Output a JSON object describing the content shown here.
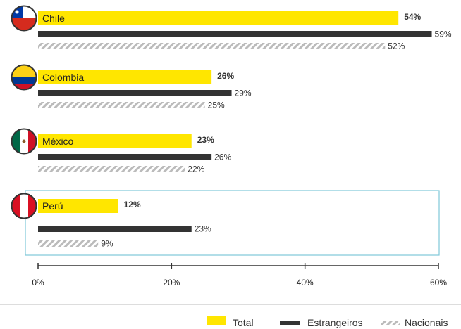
{
  "chart_data": {
    "type": "bar",
    "orientation": "horizontal",
    "categories": [
      "Chile",
      "Colombia",
      "México",
      "Perú"
    ],
    "series": [
      {
        "name": "Total",
        "values": [
          54,
          26,
          23,
          12
        ],
        "color": "#FFE600",
        "pattern": "solid"
      },
      {
        "name": "Estrangeiros",
        "values": [
          59,
          29,
          26,
          23
        ],
        "color": "#333333",
        "pattern": "solid"
      },
      {
        "name": "Nacionais",
        "values": [
          52,
          25,
          22,
          9
        ],
        "color": "#BBBBBB",
        "pattern": "hatched"
      }
    ],
    "value_suffix": "%",
    "xlim": [
      0,
      60
    ],
    "x_ticks": [
      0,
      20,
      40,
      60
    ],
    "x_tick_labels": [
      "0%",
      "20%",
      "40%",
      "60%"
    ],
    "grid": false,
    "legend_position": "bottom-right",
    "highlighted_category": "Perú",
    "highlight_color": "#7FC7D9",
    "flag_icons": [
      "chile-flag-icon",
      "colombia-flag-icon",
      "mexico-flag-icon",
      "peru-flag-icon"
    ]
  }
}
